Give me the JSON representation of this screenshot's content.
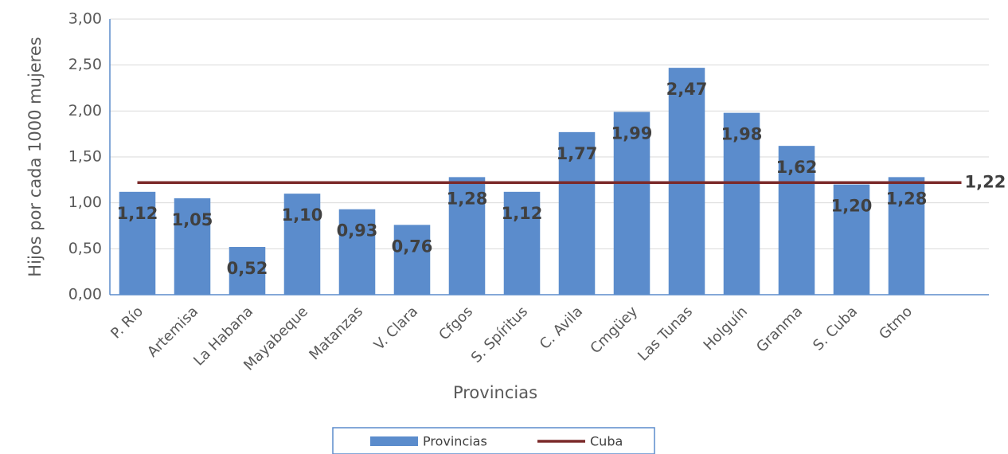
{
  "chart_data": {
    "type": "bar",
    "y_label": "Hijos por cada 1000 mujeres",
    "x_label": "Provincias",
    "categories": [
      "P. Río",
      "Artemisa",
      "La Habana",
      "Mayabeque",
      "Matanzas",
      "V. Clara",
      "Cfgos",
      "S. Spíritus",
      "C. Avila",
      "Cmgüey",
      "Las Tunas",
      "Holguín",
      "Granma",
      "S. Cuba",
      "Gtmo",
      null
    ],
    "series": [
      {
        "name": "Provincias",
        "type": "bar",
        "color": "#5b8ccc",
        "values": [
          1.12,
          1.05,
          0.52,
          1.1,
          0.93,
          0.76,
          1.28,
          1.12,
          1.77,
          1.99,
          2.47,
          1.98,
          1.62,
          1.2,
          1.28,
          null
        ],
        "value_labels": [
          "1,12",
          "1,05",
          "0,52",
          "1,10",
          "0,93",
          "0,76",
          "1,28",
          "1,12",
          "1,77",
          "1,99",
          "2,47",
          "1,98",
          "1,62",
          "1,20",
          "1,28",
          null
        ]
      },
      {
        "name": "Cuba",
        "type": "line",
        "color": "#7b2a2a",
        "values": [
          1.22,
          1.22,
          1.22,
          1.22,
          1.22,
          1.22,
          1.22,
          1.22,
          1.22,
          1.22,
          1.22,
          1.22,
          1.22,
          1.22,
          1.22,
          1.22
        ],
        "value_labels": [
          null,
          null,
          null,
          null,
          null,
          null,
          null,
          null,
          null,
          null,
          null,
          null,
          null,
          null,
          null,
          "1,22"
        ]
      }
    ],
    "ylim": [
      0,
      3
    ],
    "yticks": [
      {
        "value": 0,
        "label": "0,00"
      },
      {
        "value": 0.5,
        "label": "0,50"
      },
      {
        "value": 1,
        "label": "1,00"
      },
      {
        "value": 1.5,
        "label": "1,50"
      },
      {
        "value": 2,
        "label": "2,00"
      },
      {
        "value": 2.5,
        "label": "2,50"
      },
      {
        "value": 3,
        "label": "3,00"
      }
    ],
    "grid": true,
    "legend": "bottom"
  }
}
